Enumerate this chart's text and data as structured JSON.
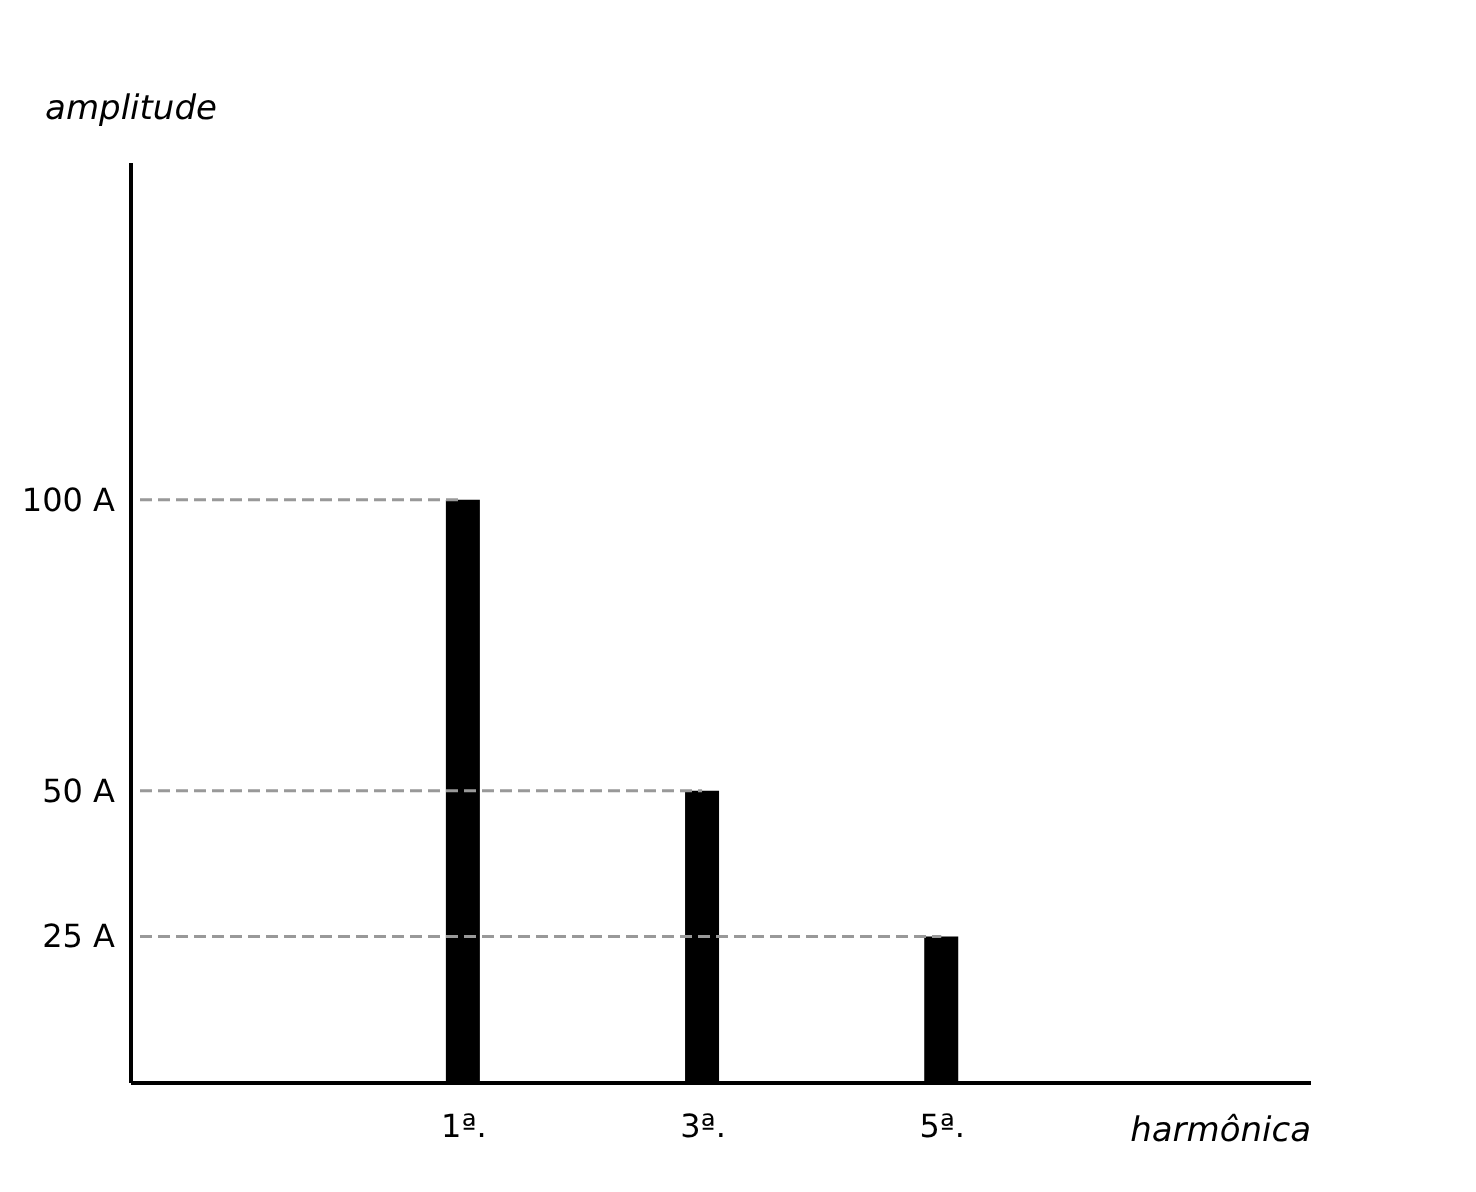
{
  "chart_data": {
    "type": "bar",
    "xlabel": "harmônica",
    "ylabel": "amplitude",
    "categories": [
      "1ª.",
      "3ª.",
      "5ª."
    ],
    "values": [
      100,
      50,
      25
    ],
    "color": "#000000",
    "ylim": [
      0,
      158
    ],
    "yticks": [
      {
        "value": 25,
        "label": "25 A"
      },
      {
        "value": 50,
        "label": "50 A"
      },
      {
        "value": 100,
        "label": "100 A"
      }
    ],
    "ref_lines": [
      {
        "axis": "y",
        "value": 100,
        "color": "#999999",
        "line_style": "dashed"
      },
      {
        "axis": "y",
        "value": 50,
        "color": "#999999",
        "line_style": "dashed"
      },
      {
        "axis": "y",
        "value": 25,
        "color": "#999999",
        "line_style": "dashed"
      }
    ],
    "grid": false
  }
}
